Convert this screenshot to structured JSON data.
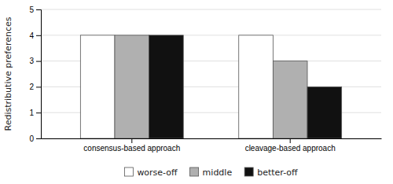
{
  "chart_data": {
    "type": "bar",
    "categories": [
      "consensus-based approach",
      "cleavage-based approach"
    ],
    "series": [
      {
        "name": "worse-off",
        "color": "#ffffff",
        "values": [
          4,
          4
        ]
      },
      {
        "name": "middle",
        "color": "#b0b0b0",
        "values": [
          4,
          3
        ]
      },
      {
        "name": "better-off",
        "color": "#111111",
        "values": [
          4,
          2
        ]
      }
    ],
    "ylabel": "Redistributive preferences",
    "ylim": [
      0,
      5
    ],
    "yticks": [
      0,
      1,
      2,
      3,
      4,
      5
    ],
    "grid": true,
    "legend": "bottom"
  }
}
